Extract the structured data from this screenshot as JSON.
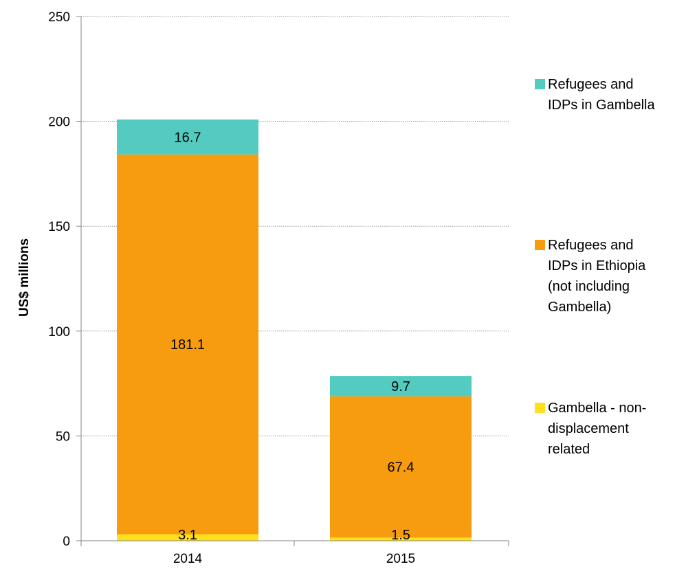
{
  "chart_data": {
    "type": "bar",
    "stacked": true,
    "categories": [
      "2014",
      "2015"
    ],
    "series": [
      {
        "name": "Gambella - non-displacement related",
        "label_lines": [
          "Gambella - non-",
          "displacement",
          "related"
        ],
        "color": "#FFE01A",
        "values": [
          3.1,
          1.5
        ]
      },
      {
        "name": "Refugees and IDPs in Ethiopia (not including Gambella)",
        "label_lines": [
          "Refugees and",
          "IDPs in Ethiopia",
          "(not including",
          "Gambella)"
        ],
        "color": "#F79C0F",
        "values": [
          181.1,
          67.4
        ]
      },
      {
        "name": "Refugees and IDPs in Gambella",
        "label_lines": [
          "Refugees and",
          "IDPs in Gambella"
        ],
        "color": "#54CBC1",
        "values": [
          16.7,
          9.7
        ]
      }
    ],
    "data_labels": [
      [
        "3.1",
        "1.5"
      ],
      [
        "181.1",
        "67.4"
      ],
      [
        "16.7",
        "9.7"
      ]
    ],
    "ylabel": "US$ millions",
    "xlabel": "",
    "title": "",
    "ylim": [
      0,
      250
    ],
    "yticks": [
      0,
      50,
      100,
      150,
      200,
      250
    ],
    "grid": "horizontal dotted",
    "legend_position": "right"
  }
}
